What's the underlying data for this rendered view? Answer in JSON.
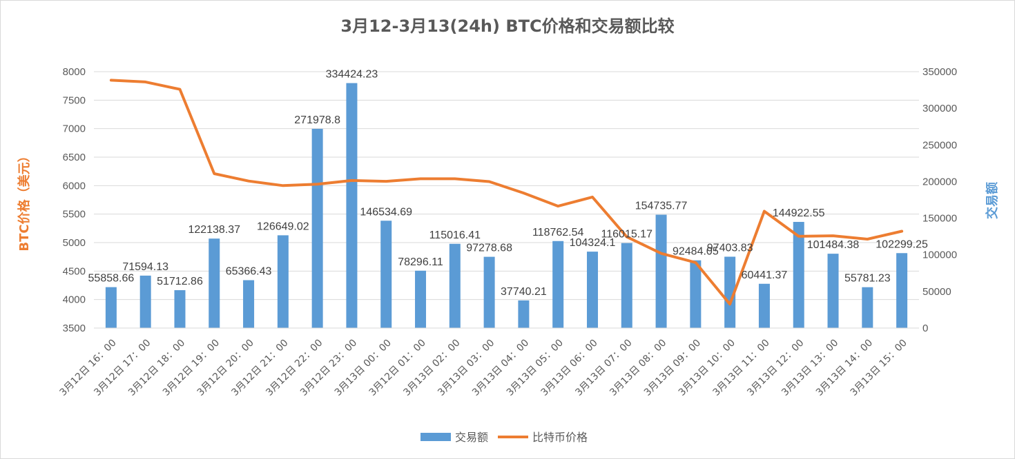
{
  "chart_data": {
    "type": "bar",
    "title": "3月12-3月13(24h) BTC价格和交易额比较",
    "ylabel_left": "BTC价格（美元）",
    "ylabel_right": "交易额",
    "ylim_left": [
      3500,
      8000
    ],
    "ylim_right": [
      0,
      350000
    ],
    "yticks_left": [
      "8000",
      "7500",
      "7000",
      "6500",
      "6000",
      "5500",
      "5000",
      "4500",
      "4000",
      "3500"
    ],
    "yticks_right": [
      "350000",
      "300000",
      "250000",
      "200000",
      "150000",
      "100000",
      "50000",
      "0"
    ],
    "grid": true,
    "legend_position": "bottom",
    "categories": [
      "3月12日 16：00",
      "3月12日 17：00",
      "3月12日 18：00",
      "3月12日 19：00",
      "3月12日 20：00",
      "3月12日 21：00",
      "3月12日 22：00",
      "3月12日 23：00",
      "3月13日 00：00",
      "3月12日 01：00",
      "3月13日 02：00",
      "3月13日 03：00",
      "3月13日 04：00",
      "3月13日 05：00",
      "3月13日 06：00",
      "3月13日 07：00",
      "3月13日 08：00",
      "3月13日 09：00",
      "3月13日 10：00",
      "3月13日 11：00",
      "3月13日 12：00",
      "3月13日 13：00",
      "3月13日 14：00",
      "3月13日 15：00"
    ],
    "series": [
      {
        "name": "交易额",
        "type": "bar",
        "axis": "right",
        "color": "#5b9bd5",
        "values": [
          55858.66,
          71594.13,
          51712.86,
          122138.37,
          65366.43,
          126649.02,
          271978.8,
          334424.23,
          146534.69,
          78296.11,
          115016.41,
          97278.68,
          37740.21,
          118762.54,
          104324.1,
          116015.17,
          154735.77,
          92484.05,
          97403.83,
          60441.37,
          144922.55,
          101484.38,
          55781.23,
          102299.25
        ],
        "labels": [
          "55858.66",
          "71594.13",
          "51712.86",
          "122138.37",
          "65366.43",
          "126649.02",
          "271978.8",
          "334424.23",
          "146534.69",
          "78296.11",
          "115016.41",
          "97278.68",
          "37740.21",
          "118762.54",
          "104324.1",
          "116015.17",
          "154735.77",
          "92484.05",
          "97403.83",
          "60441.37",
          "144922.55",
          "101484.38",
          "55781.23",
          "102299.25"
        ]
      },
      {
        "name": "比特币价格",
        "type": "line",
        "axis": "left",
        "color": "#ed7d31",
        "values": [
          7850,
          7820,
          7690,
          6210,
          6080,
          6000,
          6025,
          6090,
          6075,
          6120,
          6120,
          6070,
          5870,
          5640,
          5800,
          5100,
          4810,
          4650,
          3920,
          5550,
          5110,
          5120,
          5060,
          5200
        ]
      }
    ]
  }
}
